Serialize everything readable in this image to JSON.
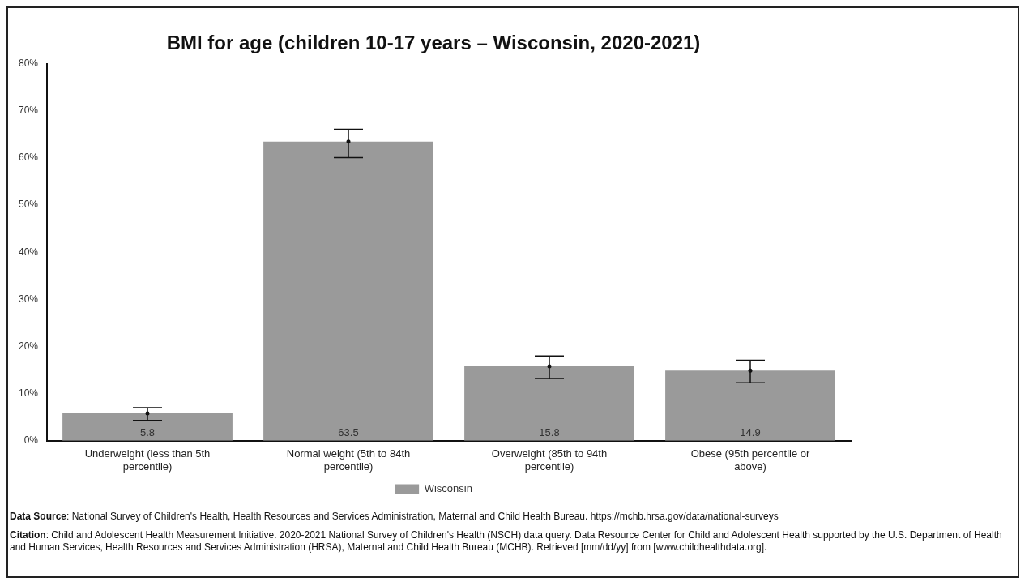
{
  "chart_data": {
    "type": "bar",
    "title": "BMI for age (children 10-17 years – Wisconsin, 2020-2021)",
    "categories": [
      "Underweight (less than 5th percentile)",
      "Normal weight (5th to 84th percentile)",
      "Overweight (85th to 94th percentile)",
      "Obese (95th percentile or above)"
    ],
    "series": [
      {
        "name": "Wisconsin",
        "color": "#9a9a9a",
        "values": [
          5.8,
          63.5,
          15.8,
          14.9
        ],
        "errors": [
          [
            4.3,
            7.0
          ],
          [
            60.1,
            66.1
          ],
          [
            13.2,
            18.0
          ],
          [
            12.3,
            17.1
          ]
        ]
      }
    ],
    "ylim": [
      0,
      80
    ],
    "yticks": [
      {
        "value": 0,
        "label": "0%"
      },
      {
        "value": 10,
        "label": "10%"
      },
      {
        "value": 20,
        "label": "20%"
      },
      {
        "value": 30,
        "label": "30%"
      },
      {
        "value": 40,
        "label": "40%"
      },
      {
        "value": 50,
        "label": "50%"
      },
      {
        "value": 60,
        "label": "60%"
      },
      {
        "value": 70,
        "label": "70%"
      },
      {
        "value": 80,
        "label": "80%"
      }
    ],
    "data_labels": true,
    "grid": false,
    "legend": "bottom",
    "annotations": [
      "Data Source: National Survey of Children's Health, Health Resources and Services Administration, Maternal and Child Health Bureau. https://mchb.hrsa.gov/data/national-surveys",
      "Citation: Child and Adolescent Health Measurement Initiative. 2020-2021 National Survey of Children's Health (NSCH) data query. Data Resource Center for Child and Adolescent Health supported by the U.S. Department of Health and Human Services, Health Resources and Services Administration (HRSA), Maternal and Child Health Bureau (MCHB). Retrieved [mm/dd/yy] from [www.childhealthdata.org]."
    ]
  }
}
